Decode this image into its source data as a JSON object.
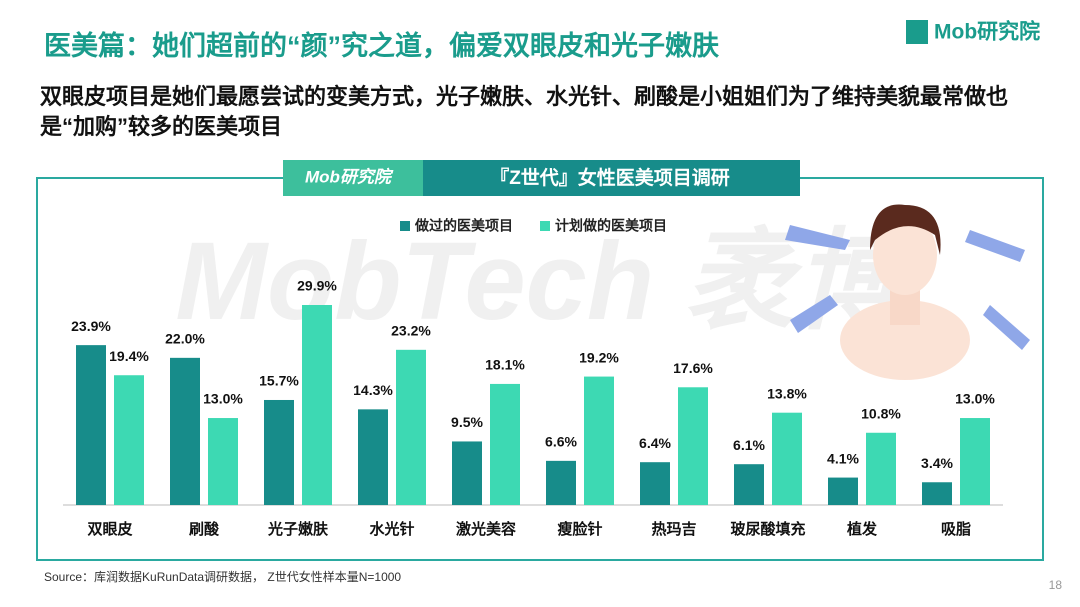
{
  "header": {
    "title": "医美篇：她们超前的“颜”究之道，偏爱双眼皮和光子嫩肤",
    "subtitle": "双眼皮项目是她们最愿尝试的变美方式，光子嫩肤、水光针、刷酸是小姐姐们为了维持美貌最常做也是“加购”较多的医美项目",
    "logo": "Mob研究院"
  },
  "chart_data": {
    "type": "bar",
    "title": "『Z世代』女性医美项目调研",
    "logo": "Mob研究院",
    "watermark": "MobTech 袤博",
    "categories": [
      "双眼皮",
      "刷酸",
      "光子嫩肤",
      "水光针",
      "激光美容",
      "瘦脸针",
      "热玛吉",
      "玻尿酸填充",
      "植发",
      "吸脂"
    ],
    "series": [
      {
        "name": "做过的医美项目",
        "color": "#178c8a",
        "values": [
          23.9,
          22.0,
          15.7,
          14.3,
          9.5,
          6.6,
          6.4,
          6.1,
          4.1,
          3.4
        ],
        "value_labels": [
          "23.9%",
          "22.0%",
          "15.7%",
          "14.3%",
          "9.5%",
          "6.6%",
          "6.4%",
          "6.1%",
          "4.1%",
          "3.4%"
        ]
      },
      {
        "name": "计划做的医美项目",
        "color": "#3dd9b3",
        "values": [
          19.4,
          13.0,
          29.9,
          23.2,
          18.1,
          19.2,
          17.6,
          13.8,
          10.8,
          13.0
        ],
        "value_labels": [
          "19.4%",
          "13.0%",
          "29.9%",
          "23.2%",
          "18.1%",
          "19.2%",
          "17.6%",
          "13.8%",
          "10.8%",
          "13.0%"
        ]
      }
    ],
    "legend": "top"
  },
  "footer": {
    "source": "Source：库润数据KuRunData调研数据， Z世代女性样本量N=1000",
    "page": "18"
  }
}
